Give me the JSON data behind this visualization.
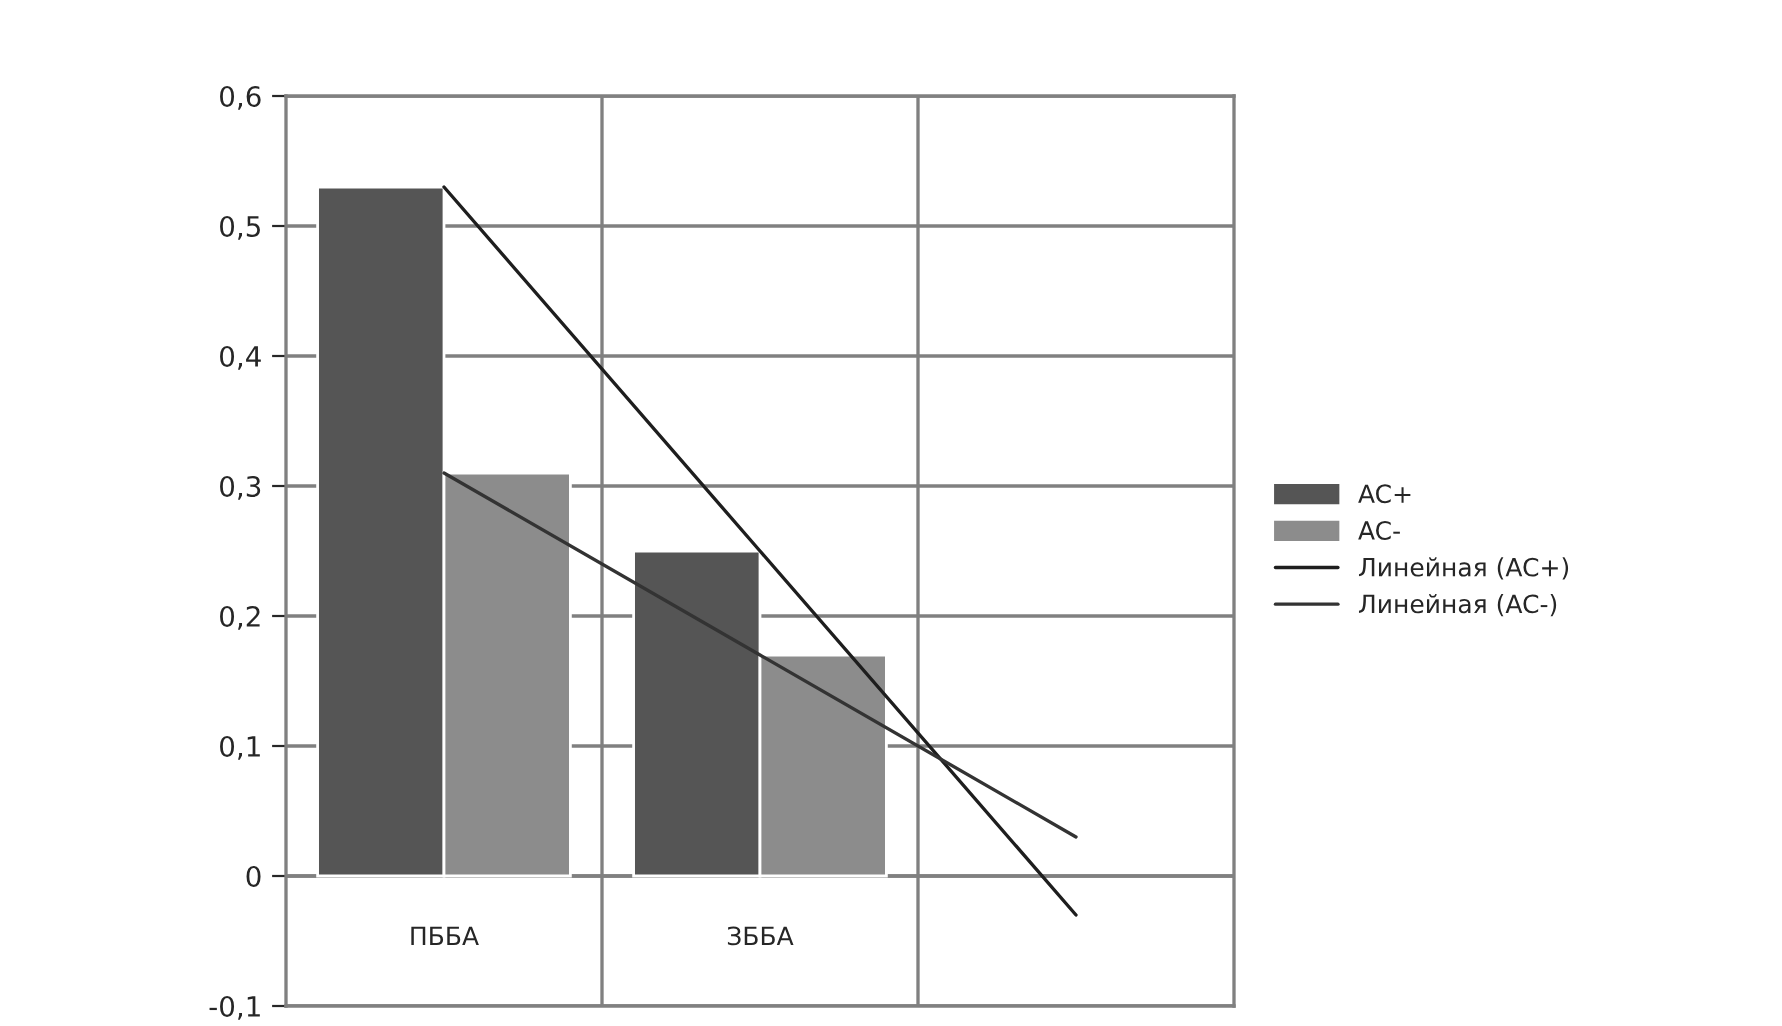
{
  "chart_data": {
    "type": "bar",
    "categories": [
      "ПББА",
      "ЗББА",
      null
    ],
    "series": [
      {
        "name": "AC+",
        "color": "#555555",
        "values": [
          0.53,
          0.25,
          null
        ]
      },
      {
        "name": "AC-",
        "color": "#8c8c8c",
        "values": [
          0.31,
          0.17,
          null
        ]
      },
      {
        "name": "Линейная (AC+)",
        "type": "line",
        "color": "#1e1e1e",
        "values": [
          0.53,
          0.25,
          -0.03
        ]
      },
      {
        "name": "Линейная (AC-)",
        "type": "line",
        "color": "#333333",
        "values": [
          0.31,
          0.17,
          0.03
        ]
      }
    ],
    "ylim": [
      -0.1,
      0.6
    ],
    "yticks": [
      {
        "value": -0.1,
        "label": "-0,1"
      },
      {
        "value": 0,
        "label": "0"
      },
      {
        "value": 0.1,
        "label": "0,1"
      },
      {
        "value": 0.2,
        "label": "0,2"
      },
      {
        "value": 0.3,
        "label": "0,3"
      },
      {
        "value": 0.4,
        "label": "0,4"
      },
      {
        "value": 0.5,
        "label": "0,5"
      },
      {
        "value": 0.6,
        "label": "0,6"
      }
    ],
    "grid": true,
    "legend": "right",
    "marker": "none",
    "line_style": "solid"
  }
}
